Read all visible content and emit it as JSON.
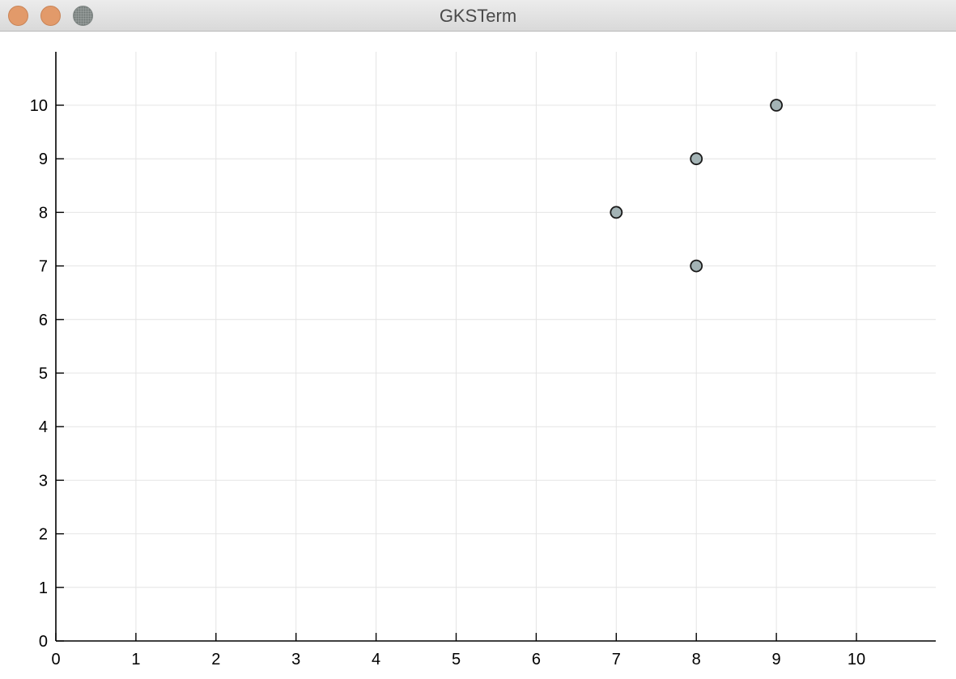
{
  "window": {
    "title": "GKSTerm",
    "buttons": {
      "close": "close-button",
      "minimize": "minimize-button",
      "zoom": "zoom-button"
    },
    "colors": {
      "close": "#e29a6a",
      "minimize": "#e29a6a",
      "zoom": "#9aa19f"
    }
  },
  "chart_data": {
    "type": "scatter",
    "title": "",
    "xlabel": "",
    "ylabel": "",
    "xlim": [
      0,
      11
    ],
    "ylim": [
      0,
      11
    ],
    "xticks": [
      0,
      1,
      2,
      3,
      4,
      5,
      6,
      7,
      8,
      9,
      10
    ],
    "yticks": [
      0,
      1,
      2,
      3,
      4,
      5,
      6,
      7,
      8,
      9,
      10
    ],
    "xtick_labels": [
      "0",
      "1",
      "2",
      "3",
      "4",
      "5",
      "6",
      "7",
      "8",
      "9",
      "10"
    ],
    "ytick_labels": [
      "0",
      "1",
      "2",
      "3",
      "4",
      "5",
      "6",
      "7",
      "8",
      "9",
      "10"
    ],
    "grid": true,
    "legend": "none",
    "series": [
      {
        "x": [
          7,
          8,
          8,
          9
        ],
        "y": [
          8,
          9,
          7,
          10
        ],
        "marker_color": "#a3b3b5",
        "marker_edge": "#1a1a1a"
      }
    ]
  }
}
